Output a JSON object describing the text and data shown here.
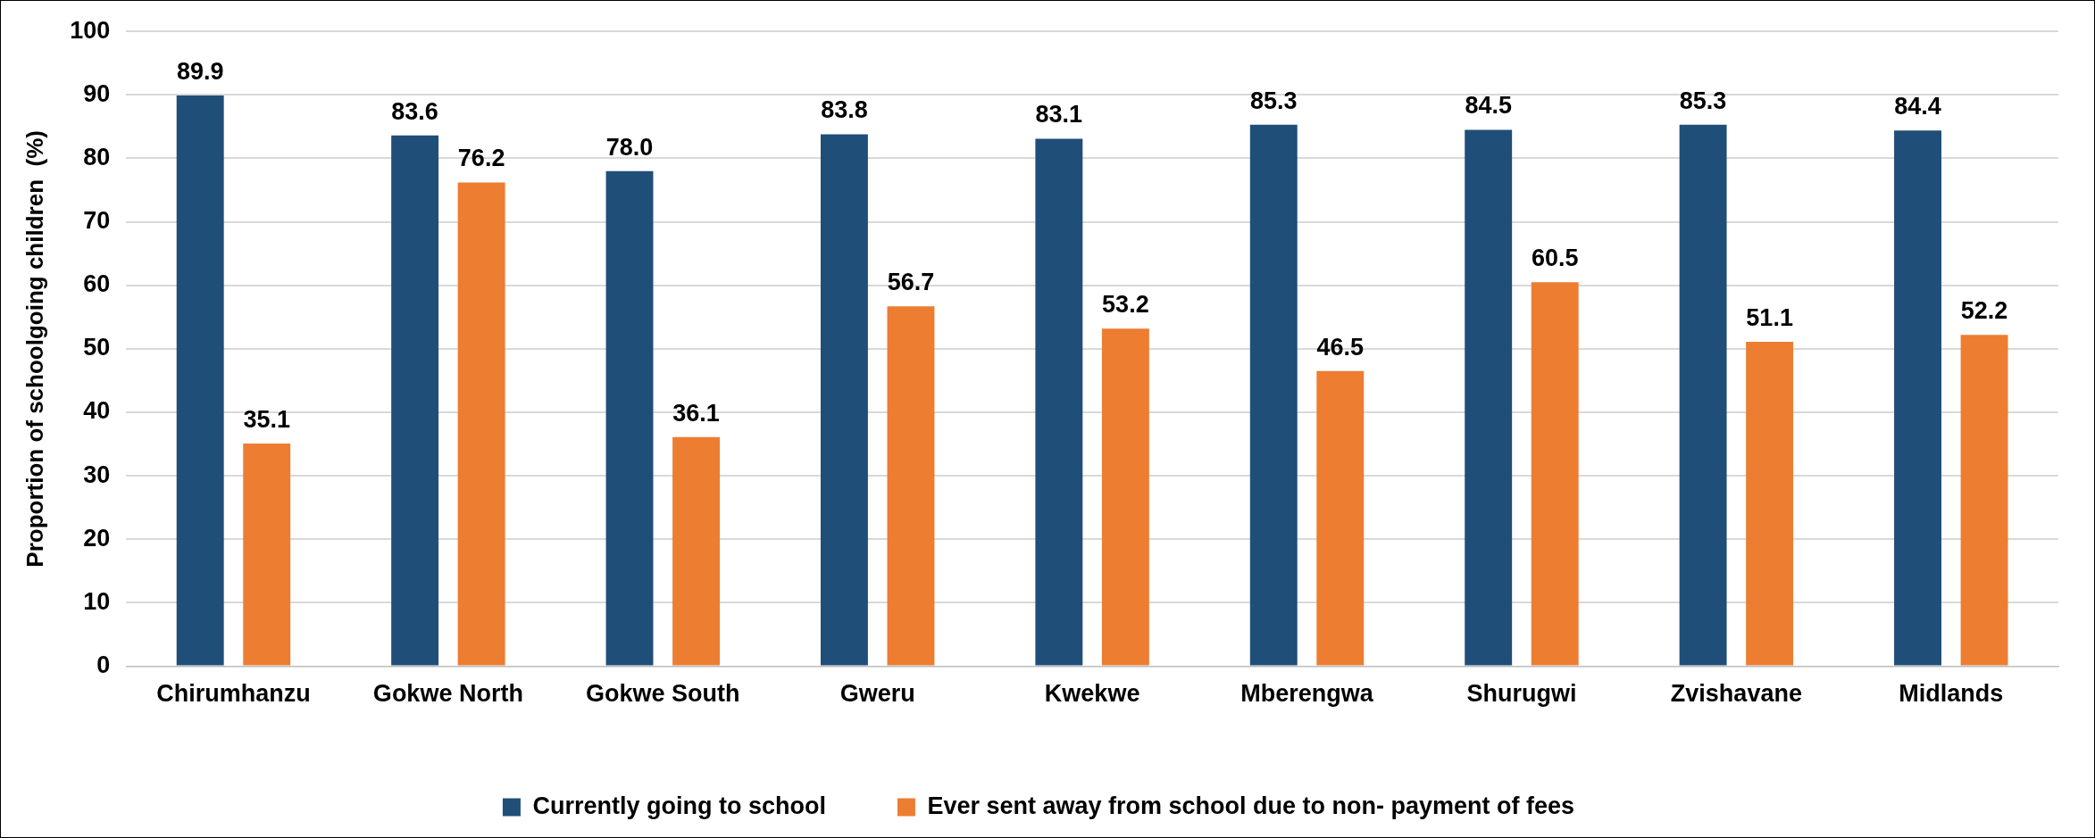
{
  "chart_data": {
    "type": "bar",
    "ylabel": "Proportion of schoolgoing children  (%)",
    "categories": [
      "Chirumhanzu",
      "Gokwe North",
      "Gokwe South",
      "Gweru",
      "Kwekwe",
      "Mberengwa",
      "Shurugwi",
      "Zvishavane",
      "Midlands"
    ],
    "series": [
      {
        "name": "Currently going to school",
        "color": "#1f4e79",
        "values": [
          89.9,
          83.6,
          78.0,
          83.8,
          83.1,
          85.3,
          84.5,
          85.3,
          84.4
        ],
        "value_labels": [
          "89.9",
          "83.6",
          "78.0",
          "83.8",
          "83.1",
          "85.3",
          "84.5",
          "85.3",
          "84.4"
        ]
      },
      {
        "name": "Ever sent away from school due to non- payment of fees",
        "color": "#ed7d31",
        "values": [
          35.1,
          76.2,
          36.1,
          56.7,
          53.2,
          46.5,
          60.5,
          51.1,
          52.2
        ],
        "value_labels": [
          "35.1",
          "76.2",
          "36.1",
          "56.7",
          "53.2",
          "46.5",
          "60.5",
          "51.1",
          "52.2"
        ]
      }
    ],
    "ylim": [
      0,
      100
    ],
    "yticks": [
      0,
      10,
      20,
      30,
      40,
      50,
      60,
      70,
      80,
      90,
      100
    ],
    "grid": "y",
    "legend": "bottom"
  }
}
